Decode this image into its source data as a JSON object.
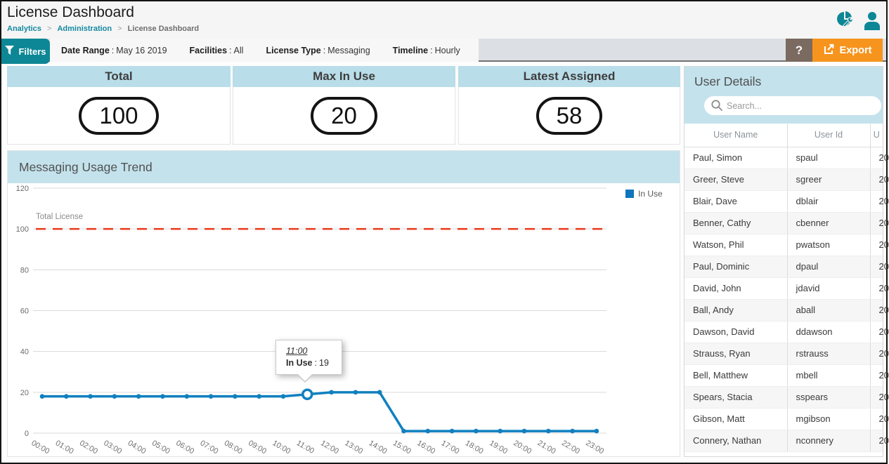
{
  "header": {
    "title": "License Dashboard",
    "breadcrumb": [
      "Analytics",
      "Administration",
      "License Dashboard"
    ],
    "breadcrumb_separator": ">"
  },
  "filter_bar": {
    "filters_label": "Filters",
    "separator": ":",
    "filters": [
      {
        "label": "Date Range",
        "value": "May 16 2019"
      },
      {
        "label": "Facilities",
        "value": "All"
      },
      {
        "label": "License Type",
        "value": "Messaging"
      },
      {
        "label": "Timeline",
        "value": "Hourly"
      }
    ],
    "help_label": "?",
    "export_label": "Export"
  },
  "stat_cards": [
    {
      "title": "Total",
      "value": "100"
    },
    {
      "title": "Max In Use",
      "value": "20"
    },
    {
      "title": "Latest Assigned",
      "value": "58"
    }
  ],
  "chart": {
    "title": "Messaging Usage Trend",
    "tooltip": {
      "time": "11:00",
      "label": "In Use",
      "separator": ":",
      "value": "19"
    }
  },
  "chart_data": {
    "type": "line",
    "title": "Messaging Usage Trend",
    "x": [
      "00:00",
      "01:00",
      "02:00",
      "03:00",
      "04:00",
      "05:00",
      "06:00",
      "07:00",
      "08:00",
      "09:00",
      "10:00",
      "11:00",
      "12:00",
      "13:00",
      "14:00",
      "15:00",
      "16:00",
      "17:00",
      "18:00",
      "19:00",
      "20:00",
      "21:00",
      "22:00",
      "23:00"
    ],
    "series": [
      {
        "name": "In Use",
        "color": "#1080bf",
        "values": [
          18,
          18,
          18,
          18,
          18,
          18,
          18,
          18,
          18,
          18,
          18,
          19,
          20,
          20,
          20,
          1,
          1,
          1,
          1,
          1,
          1,
          1,
          1,
          1
        ]
      }
    ],
    "reference_line": {
      "label": "Total License",
      "value": 100,
      "color": "#e8391d",
      "style": "dashed"
    },
    "ylim": [
      0,
      120
    ],
    "yticks": [
      0,
      20,
      40,
      60,
      80,
      100,
      120
    ],
    "grid": true,
    "legend_position": "top-right",
    "highlight_index": 11
  },
  "user_panel": {
    "title": "User Details",
    "search_placeholder": "Search...",
    "columns": [
      "User Name",
      "User Id",
      "U"
    ],
    "rows": [
      {
        "user_name": "Paul, Simon",
        "user_id": "spaul",
        "col3": "20"
      },
      {
        "user_name": "Greer, Steve",
        "user_id": "sgreer",
        "col3": "20"
      },
      {
        "user_name": "Blair, Dave",
        "user_id": "dblair",
        "col3": "20"
      },
      {
        "user_name": "Benner, Cathy",
        "user_id": "cbenner",
        "col3": "20"
      },
      {
        "user_name": "Watson, Phil",
        "user_id": "pwatson",
        "col3": "20"
      },
      {
        "user_name": "Paul, Dominic",
        "user_id": "dpaul",
        "col3": "20"
      },
      {
        "user_name": "David, John",
        "user_id": "jdavid",
        "col3": "20"
      },
      {
        "user_name": "Ball, Andy",
        "user_id": "aball",
        "col3": "20"
      },
      {
        "user_name": "Dawson, David",
        "user_id": "ddawson",
        "col3": "20"
      },
      {
        "user_name": "Strauss, Ryan",
        "user_id": "rstrauss",
        "col3": "20"
      },
      {
        "user_name": "Bell, Matthew",
        "user_id": "mbell",
        "col3": "20"
      },
      {
        "user_name": "Spears, Stacia",
        "user_id": "sspears",
        "col3": "20"
      },
      {
        "user_name": "Gibson, Matt",
        "user_id": "mgibson",
        "col3": "20"
      },
      {
        "user_name": "Connery, Nathan",
        "user_id": "nconnery",
        "col3": "20"
      }
    ]
  },
  "colors": {
    "accent_teal": "#0d8795",
    "export_orange": "#f7941e",
    "help_brown": "#7a6a60",
    "panel_header_blue": "#c3e2ec",
    "card_header_blue": "#b9dde9",
    "line_blue": "#1080bf",
    "reference_red": "#e8391d"
  }
}
